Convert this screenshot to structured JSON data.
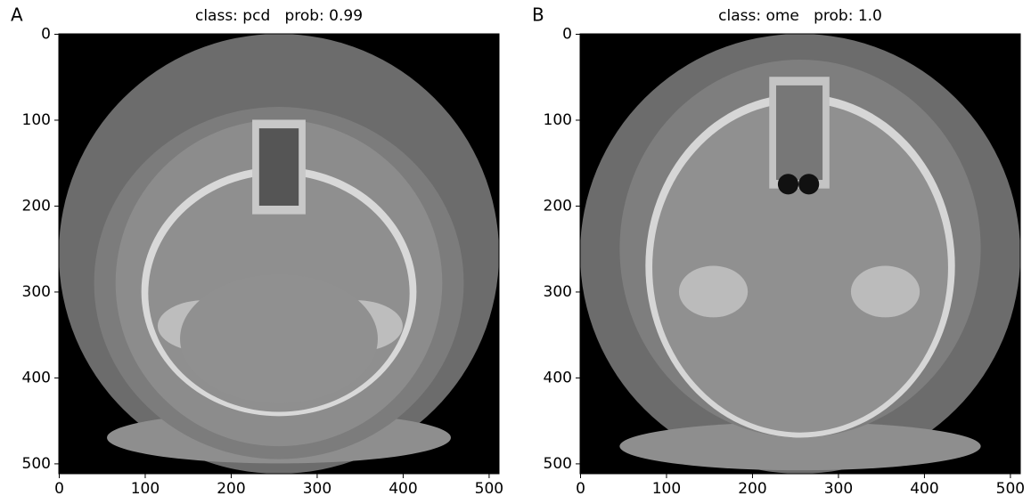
{
  "panels": [
    {
      "label": "A",
      "title": "class: pcd   prob: 0.99",
      "xlim": [
        -0.5,
        511.5
      ],
      "ylim": [
        511.5,
        -0.5
      ],
      "xticks": [
        0,
        100,
        200,
        300,
        400,
        500
      ],
      "yticks": [
        0,
        100,
        200,
        300,
        400,
        500
      ]
    },
    {
      "label": "B",
      "title": "class: ome   prob: 1.0",
      "xlim": [
        -0.5,
        511.5
      ],
      "ylim": [
        511.5,
        -0.5
      ],
      "xticks": [
        0,
        100,
        200,
        300,
        400,
        500
      ],
      "yticks": [
        0,
        100,
        200,
        300,
        400,
        500
      ]
    }
  ]
}
